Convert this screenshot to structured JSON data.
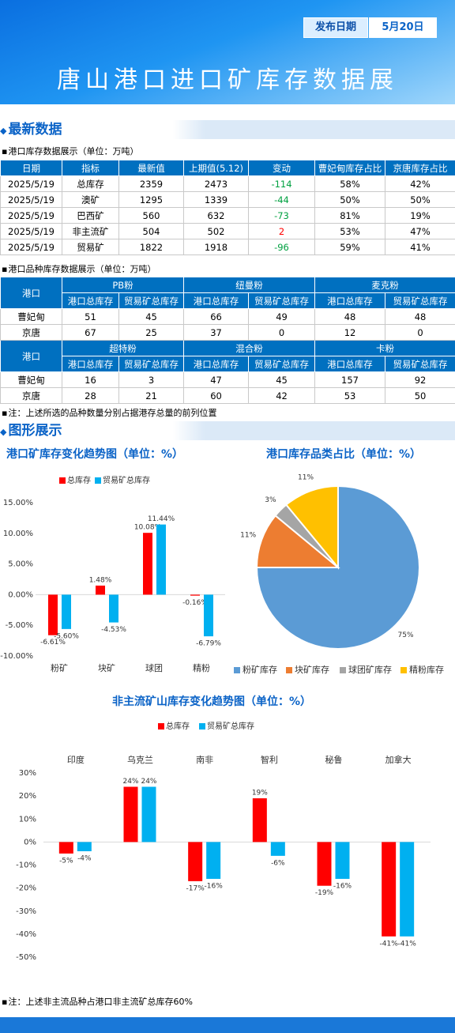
{
  "header": {
    "title": "唐山港口进口矿库存数据展",
    "date_label": "发布日期",
    "date": "5月20日"
  },
  "section1": {
    "title": "最新数据"
  },
  "table1": {
    "caption": "港口库存数据展示（单位：万吨）",
    "columns": [
      "日期",
      "指标",
      "最新值",
      "上期值(5.12)",
      "变动",
      "曹妃甸库存占比",
      "京唐库存占比"
    ],
    "rows": [
      [
        "2025/5/19",
        "总库存",
        2359,
        2473,
        -114,
        "58%",
        "42%"
      ],
      [
        "2025/5/19",
        "澳矿",
        1295,
        1339,
        -44,
        "50%",
        "50%"
      ],
      [
        "2025/5/19",
        "巴西矿",
        560,
        632,
        -73,
        "81%",
        "19%"
      ],
      [
        "2025/5/19",
        "非主流矿",
        504,
        502,
        2,
        "53%",
        "47%"
      ],
      [
        "2025/5/19",
        "贸易矿",
        1822,
        1918,
        -96,
        "59%",
        "41%"
      ]
    ]
  },
  "table2": {
    "caption": "港口品种库存数据展示（单位：万吨）",
    "blocks": [
      {
        "port_header": "港口",
        "groups": [
          "PB粉",
          "纽曼粉",
          "麦克粉"
        ],
        "subheaders": [
          "港口总库存",
          "贸易矿总库存",
          "港口总库存",
          "贸易矿总库存",
          "港口总库存",
          "贸易矿总库存"
        ],
        "rows": [
          {
            "port": "曹妃甸",
            "values": [
              51,
              45,
              66,
              49,
              48,
              48
            ]
          },
          {
            "port": "京唐",
            "values": [
              67,
              25,
              37,
              0,
              12,
              0
            ]
          }
        ]
      },
      {
        "port_header": "港口",
        "groups": [
          "超特粉",
          "混合粉",
          "卡粉"
        ],
        "subheaders": [
          "港口总库存",
          "贸易矿总库存",
          "港口总库存",
          "贸易矿总库存",
          "港口总库存",
          "贸易矿总库存"
        ],
        "rows": [
          {
            "port": "曹妃甸",
            "values": [
              16,
              3,
              47,
              45,
              157,
              92
            ]
          },
          {
            "port": "京唐",
            "values": [
              28,
              21,
              60,
              42,
              53,
              50
            ]
          }
        ]
      }
    ]
  },
  "note1": "注：上述所选的品种数量分别占据港存总量的前列位置",
  "section2": {
    "title": "图形展示"
  },
  "chart_data": [
    {
      "type": "bar",
      "title": "港口矿库存变化趋势图（单位：%）",
      "categories": [
        "粉矿",
        "块矿",
        "球团",
        "精粉"
      ],
      "series": [
        {
          "name": "总库存",
          "color": "#ff0000",
          "values": [
            -6.61,
            1.48,
            10.08,
            -0.16
          ],
          "value_labels": [
            "-6.61%",
            "1.48%",
            "10.08%",
            "-0.16%"
          ]
        },
        {
          "name": "贸易矿总库存",
          "color": "#00b0f0",
          "values": [
            -5.6,
            -4.53,
            11.44,
            -6.79
          ],
          "value_labels": [
            "-5.60%",
            "-4.53%",
            "11.44%",
            "-6.79%"
          ]
        }
      ],
      "ylim": [
        -10,
        15
      ],
      "yticks": [
        {
          "value": 15,
          "label": "15.00%"
        },
        {
          "value": 10,
          "label": "10.00%"
        },
        {
          "value": 5,
          "label": "5.00%"
        },
        {
          "value": 0,
          "label": "0.00%"
        },
        {
          "value": -5,
          "label": "-5.00%"
        },
        {
          "value": -10,
          "label": "-10.00%"
        }
      ],
      "grid": false,
      "legend": "top"
    },
    {
      "type": "pie",
      "title": "港口库存品类占比（单位：%）",
      "categories": [
        "粉矿库存",
        "块矿库存",
        "球团矿库存",
        "精粉库存"
      ],
      "values": [
        75,
        11,
        3,
        11
      ],
      "value_labels": [
        "75%",
        "11%",
        "3%",
        "11%"
      ],
      "colors": [
        "#5b9bd5",
        "#ed7d31",
        "#a5a5a5",
        "#ffc000"
      ],
      "legend": "bottom"
    },
    {
      "type": "bar",
      "title": "非主流矿山库存变化趋势图（单位：%）",
      "categories": [
        "印度",
        "乌克兰",
        "南非",
        "智利",
        "秘鲁",
        "加拿大"
      ],
      "series": [
        {
          "name": "总库存",
          "color": "#ff0000",
          "values": [
            -5,
            24,
            -17,
            19,
            -19,
            -41
          ],
          "value_labels": [
            "-5%",
            "24%",
            "-17%",
            "19%",
            "-19%",
            "-41%"
          ]
        },
        {
          "name": "贸易矿总库存",
          "color": "#00b0f0",
          "values": [
            -4,
            24,
            -16,
            -6,
            -16,
            -41
          ],
          "value_labels": [
            "-4%",
            "24%",
            "-16%",
            "-6%",
            "-16%",
            "-41%"
          ]
        }
      ],
      "ylim": [
        -50,
        30
      ],
      "yticks": [
        {
          "value": 30,
          "label": "30%"
        },
        {
          "value": 20,
          "label": "20%"
        },
        {
          "value": 10,
          "label": "10%"
        },
        {
          "value": 0,
          "label": "0%"
        },
        {
          "value": -10,
          "label": "-10%"
        },
        {
          "value": -20,
          "label": "-20%"
        },
        {
          "value": -30,
          "label": "-30%"
        },
        {
          "value": -40,
          "label": "-40%"
        },
        {
          "value": -50,
          "label": "-50%"
        }
      ],
      "grid": false,
      "legend": "top"
    }
  ],
  "note2": "注：上述非主流品种占港口非主流矿总库存60%"
}
